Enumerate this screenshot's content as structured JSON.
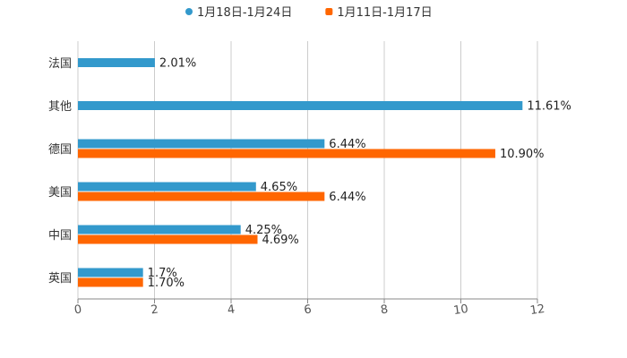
{
  "chart_data": {
    "type": "bar",
    "orientation": "horizontal",
    "categories": [
      "法国",
      "其他",
      "德国",
      "美国",
      "中国",
      "英国"
    ],
    "series": [
      {
        "name": "1月18日-1月24日",
        "color": "#3399cc",
        "values": [
          2.01,
          11.61,
          6.44,
          4.65,
          4.25,
          1.7
        ],
        "labels": [
          "2.01%",
          "11.61%",
          "6.44%",
          "4.65%",
          "4.25%",
          "1.7%"
        ]
      },
      {
        "name": "1月11日-1月17日",
        "color": "#ff6600",
        "values": [
          null,
          null,
          10.9,
          6.44,
          4.69,
          1.7
        ],
        "labels": [
          "",
          "",
          "10.90%",
          "6.44%",
          "4.69%",
          "1.70%"
        ]
      }
    ],
    "xlim": [
      0,
      12
    ],
    "xticks": [
      0,
      2,
      4,
      6,
      8,
      10,
      12
    ],
    "tick_labels": [
      "0",
      "2",
      "4",
      "6",
      "8",
      "10",
      "12"
    ],
    "grid": true,
    "legend_position": "top-center",
    "title": "",
    "xlabel": "",
    "ylabel": ""
  }
}
